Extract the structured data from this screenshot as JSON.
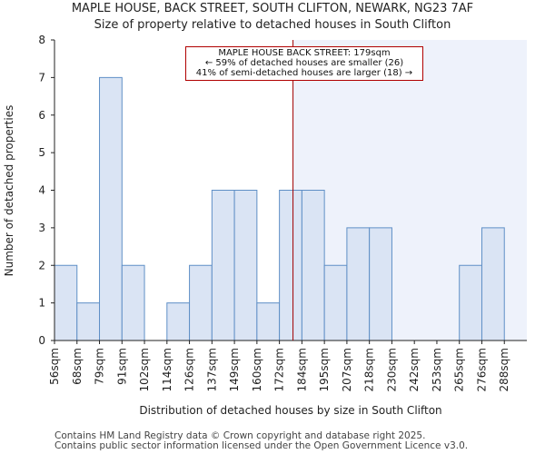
{
  "chart_data": {
    "type": "bar",
    "title": "MAPLE HOUSE, BACK STREET, SOUTH CLIFTON, NEWARK, NG23 7AF",
    "subtitle": "Size of property relative to detached houses in South Clifton",
    "xlabel": "Distribution of detached houses by size in South Clifton",
    "ylabel": "Number of detached properties",
    "categories": [
      "56sqm",
      "68sqm",
      "79sqm",
      "91sqm",
      "102sqm",
      "114sqm",
      "126sqm",
      "137sqm",
      "149sqm",
      "160sqm",
      "172sqm",
      "184sqm",
      "195sqm",
      "207sqm",
      "218sqm",
      "230sqm",
      "242sqm",
      "253sqm",
      "265sqm",
      "276sqm",
      "288sqm"
    ],
    "values": [
      2,
      1,
      7,
      2,
      0,
      1,
      2,
      4,
      4,
      1,
      4,
      4,
      2,
      3,
      3,
      0,
      0,
      0,
      2,
      3,
      0
    ],
    "ylim": [
      0,
      8
    ],
    "yticks": [
      0,
      1,
      2,
      3,
      4,
      5,
      6,
      7,
      8
    ],
    "subject_size_sqm": 179,
    "subject_line_color": "#a00000",
    "bar_fill": "#dae4f4",
    "bar_stroke": "#5f8fc6",
    "shade_fill": "#eef2fb",
    "annotation": {
      "line1": "MAPLE HOUSE BACK STREET: 179sqm",
      "line2": "← 59% of detached houses are smaller (26)",
      "line3": "41% of semi-detached houses are larger (18) →"
    }
  },
  "footer": {
    "line1": "Contains HM Land Registry data © Crown copyright and database right 2025.",
    "line2": "Contains public sector information licensed under the Open Government Licence v3.0."
  }
}
